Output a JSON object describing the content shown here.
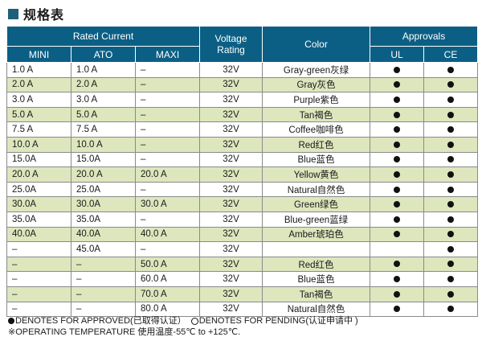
{
  "title": "规格表",
  "header": {
    "rated_current": "Rated Current",
    "voltage_rating": "Voltage Rating",
    "color": "Color",
    "approvals": "Approvals",
    "mini": "MINI",
    "ato": "ATO",
    "maxi": "MAXI",
    "ul": "UL",
    "ce": "CE"
  },
  "rows": [
    {
      "mini": "1.0 A",
      "ato": "1.0 A",
      "maxi": "–",
      "voltage": "32V",
      "color": "Gray-green灰绿",
      "ul": true,
      "ce": true
    },
    {
      "mini": "2.0 A",
      "ato": "2.0 A",
      "maxi": "–",
      "voltage": "32V",
      "color": "Gray灰色",
      "ul": true,
      "ce": true
    },
    {
      "mini": "3.0 A",
      "ato": "3.0 A",
      "maxi": "–",
      "voltage": "32V",
      "color": "Purple紫色",
      "ul": true,
      "ce": true
    },
    {
      "mini": "5.0 A",
      "ato": "5.0 A",
      "maxi": "–",
      "voltage": "32V",
      "color": "Tan褐色",
      "ul": true,
      "ce": true
    },
    {
      "mini": "7.5 A",
      "ato": "7.5 A",
      "maxi": "–",
      "voltage": "32V",
      "color": "Coffee咖啡色",
      "ul": true,
      "ce": true
    },
    {
      "mini": "10.0 A",
      "ato": "10.0 A",
      "maxi": "–",
      "voltage": "32V",
      "color": "Red红色",
      "ul": true,
      "ce": true
    },
    {
      "mini": "15.0A",
      "ato": "15.0A",
      "maxi": "–",
      "voltage": "32V",
      "color": "Blue蓝色",
      "ul": true,
      "ce": true
    },
    {
      "mini": "20.0 A",
      "ato": "20.0 A",
      "maxi": "20.0 A",
      "voltage": "32V",
      "color": "Yellow黄色",
      "ul": true,
      "ce": true
    },
    {
      "mini": "25.0A",
      "ato": "25.0A",
      "maxi": "–",
      "voltage": "32V",
      "color": "Natural自然色",
      "ul": true,
      "ce": true
    },
    {
      "mini": "30.0A",
      "ato": "30.0A",
      "maxi": "30.0 A",
      "voltage": "32V",
      "color": "Green绿色",
      "ul": true,
      "ce": true
    },
    {
      "mini": "35.0A",
      "ato": "35.0A",
      "maxi": "–",
      "voltage": "32V",
      "color": "Blue-green蓝绿",
      "ul": true,
      "ce": true
    },
    {
      "mini": "40.0A",
      "ato": "40.0A",
      "maxi": "40.0 A",
      "voltage": "32V",
      "color": "Amber琥珀色",
      "ul": true,
      "ce": true
    },
    {
      "mini": "–",
      "ato": "45.0A",
      "maxi": "–",
      "voltage": "32V",
      "color": "",
      "ul": false,
      "ce": true
    },
    {
      "mini": "–",
      "ato": "–",
      "maxi": "50.0 A",
      "voltage": "32V",
      "color": "Red红色",
      "ul": true,
      "ce": true
    },
    {
      "mini": "–",
      "ato": "–",
      "maxi": "60.0 A",
      "voltage": "32V",
      "color": "Blue蓝色",
      "ul": true,
      "ce": true
    },
    {
      "mini": "–",
      "ato": "–",
      "maxi": "70.0 A",
      "voltage": "32V",
      "color": "Tan褐色",
      "ul": true,
      "ce": true
    },
    {
      "mini": "–",
      "ato": "–",
      "maxi": "80.0 A",
      "voltage": "32V",
      "color": "Natural自然色",
      "ul": true,
      "ce": true
    }
  ],
  "notes": {
    "approved": "DENOTES FOR APPROVED(已取得认证）",
    "pending": "DENOTES FOR PENDING(认证申请中 )",
    "operating": "※OPERATING TEMPERATURE 使用温度-55℃ to +125℃."
  },
  "colors": {
    "header_bg": "#0c5f84",
    "row_alt": "#dde6bd",
    "accent_square": "#1f5f7a"
  }
}
